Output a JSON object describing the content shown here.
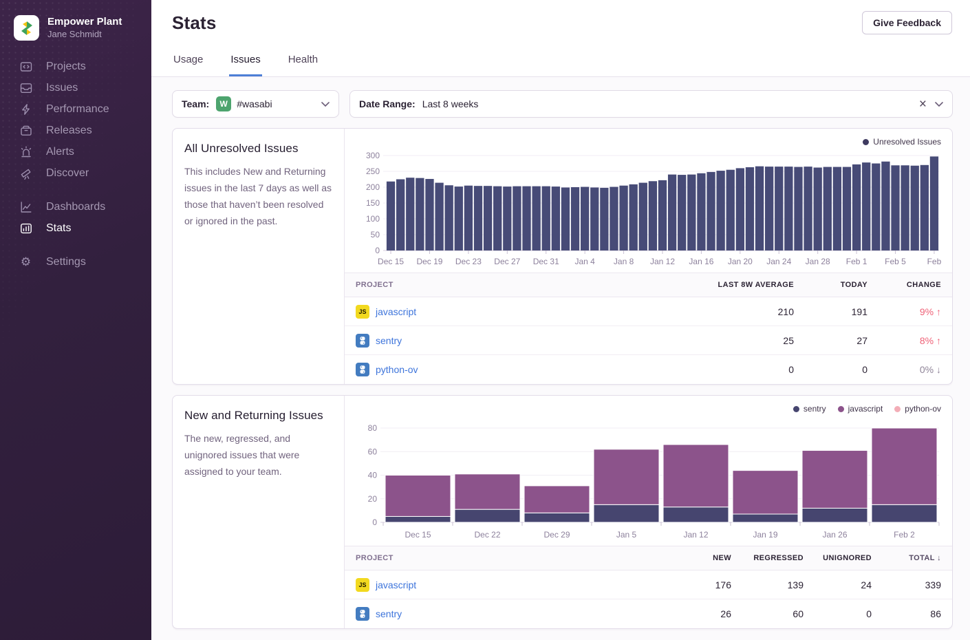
{
  "sidebar": {
    "org_name": "Empower Plant",
    "user_name": "Jane Schmidt",
    "nav_primary": [
      {
        "label": "Projects"
      },
      {
        "label": "Issues"
      },
      {
        "label": "Performance"
      },
      {
        "label": "Releases"
      },
      {
        "label": "Alerts"
      },
      {
        "label": "Discover"
      }
    ],
    "nav_secondary": [
      {
        "label": "Dashboards"
      },
      {
        "label": "Stats"
      }
    ],
    "nav_tertiary": [
      {
        "label": "Settings"
      }
    ],
    "active_item": "Stats"
  },
  "header": {
    "title": "Stats",
    "feedback_button": "Give Feedback",
    "tabs": [
      {
        "label": "Usage"
      },
      {
        "label": "Issues"
      },
      {
        "label": "Health"
      }
    ],
    "active_tab": "Issues",
    "active_tab_color": "#4d7fd6"
  },
  "filters": {
    "team_label": "Team:",
    "team_avatar_letter": "W",
    "team_avatar_color": "#4da46e",
    "team_value": "#wasabi",
    "date_label": "Date Range:",
    "date_value": "Last 8 weeks"
  },
  "panel1": {
    "title": "All Unresolved Issues",
    "description": "This includes New and Returning issues in the last 7 days as well as those that haven’t been resolved or ignored in the past.",
    "table": {
      "headers": [
        "Project",
        "Last 8w Average",
        "Today",
        "Change"
      ],
      "rows": [
        {
          "project": "javascript",
          "icon": "js",
          "cells": [
            {
              "text": "210"
            },
            {
              "text": "191"
            },
            {
              "text": "9% ↑",
              "tone": "red"
            }
          ]
        },
        {
          "project": "sentry",
          "icon": "python",
          "cells": [
            {
              "text": "25"
            },
            {
              "text": "27"
            },
            {
              "text": "8% ↑",
              "tone": "red"
            }
          ]
        },
        {
          "project": "python-ov",
          "icon": "python",
          "cells": [
            {
              "text": "0"
            },
            {
              "text": "0"
            },
            {
              "text": "0% ↓",
              "tone": "gray"
            }
          ]
        }
      ]
    }
  },
  "panel2": {
    "title": "New and Returning Issues",
    "description": "The new, regressed, and unignored issues that were assigned to your team.",
    "table": {
      "headers": [
        "Project",
        "New",
        "Regressed",
        "Unignored",
        "Total ↓"
      ],
      "sorted_header": "Total ↓",
      "rows": [
        {
          "project": "javascript",
          "icon": "js",
          "cells": [
            {
              "text": "176"
            },
            {
              "text": "139"
            },
            {
              "text": "24"
            },
            {
              "text": "339"
            }
          ]
        },
        {
          "project": "sentry",
          "icon": "python",
          "cells": [
            {
              "text": "26"
            },
            {
              "text": "60"
            },
            {
              "text": "0"
            },
            {
              "text": "86"
            }
          ]
        }
      ]
    }
  },
  "chart_data": [
    {
      "type": "bar",
      "title": "All Unresolved Issues",
      "legend": [
        {
          "label": "Unresolved Issues",
          "color": "#3e3a60"
        }
      ],
      "bar_color": "#474b77",
      "ylim": [
        0,
        300
      ],
      "yticks": [
        0,
        50,
        100,
        150,
        200,
        250,
        300
      ],
      "x_tick_labels": [
        "Dec 15",
        "Dec 19",
        "Dec 23",
        "Dec 27",
        "Dec 31",
        "Jan 4",
        "Jan 8",
        "Jan 12",
        "Jan 16",
        "Jan 20",
        "Jan 24",
        "Jan 28",
        "Feb 1",
        "Feb 5",
        "Feb"
      ],
      "x_tick_every": 4,
      "values": [
        218,
        225,
        230,
        229,
        226,
        214,
        206,
        202,
        205,
        204,
        204,
        203,
        202,
        203,
        203,
        203,
        203,
        202,
        199,
        200,
        201,
        199,
        198,
        201,
        205,
        209,
        214,
        219,
        222,
        240,
        239,
        240,
        244,
        248,
        252,
        255,
        260,
        263,
        266,
        265,
        265,
        265,
        264,
        265,
        262,
        264,
        264,
        264,
        272,
        278,
        275,
        281,
        269,
        269,
        268,
        270,
        297
      ]
    },
    {
      "type": "stacked-bar",
      "title": "New and Returning Issues",
      "categories": [
        "Dec 15",
        "Dec 22",
        "Dec 29",
        "Jan 5",
        "Jan 12",
        "Jan 19",
        "Jan 26",
        "Feb 2"
      ],
      "series": [
        {
          "name": "sentry",
          "color": "#46456f",
          "values": [
            5,
            11,
            8,
            15,
            13,
            7,
            12,
            15
          ]
        },
        {
          "name": "javascript",
          "color": "#8c538b",
          "values": [
            35,
            30,
            23,
            47,
            53,
            37,
            49,
            65
          ]
        },
        {
          "name": "python-ov",
          "color": "#ea6a7b",
          "muted": true,
          "values": [
            0,
            0,
            0,
            0,
            0,
            0,
            0,
            0
          ]
        }
      ],
      "ylim": [
        0,
        80
      ],
      "yticks": [
        0,
        20,
        40,
        60,
        80
      ],
      "legend_position": "top-right"
    }
  ]
}
